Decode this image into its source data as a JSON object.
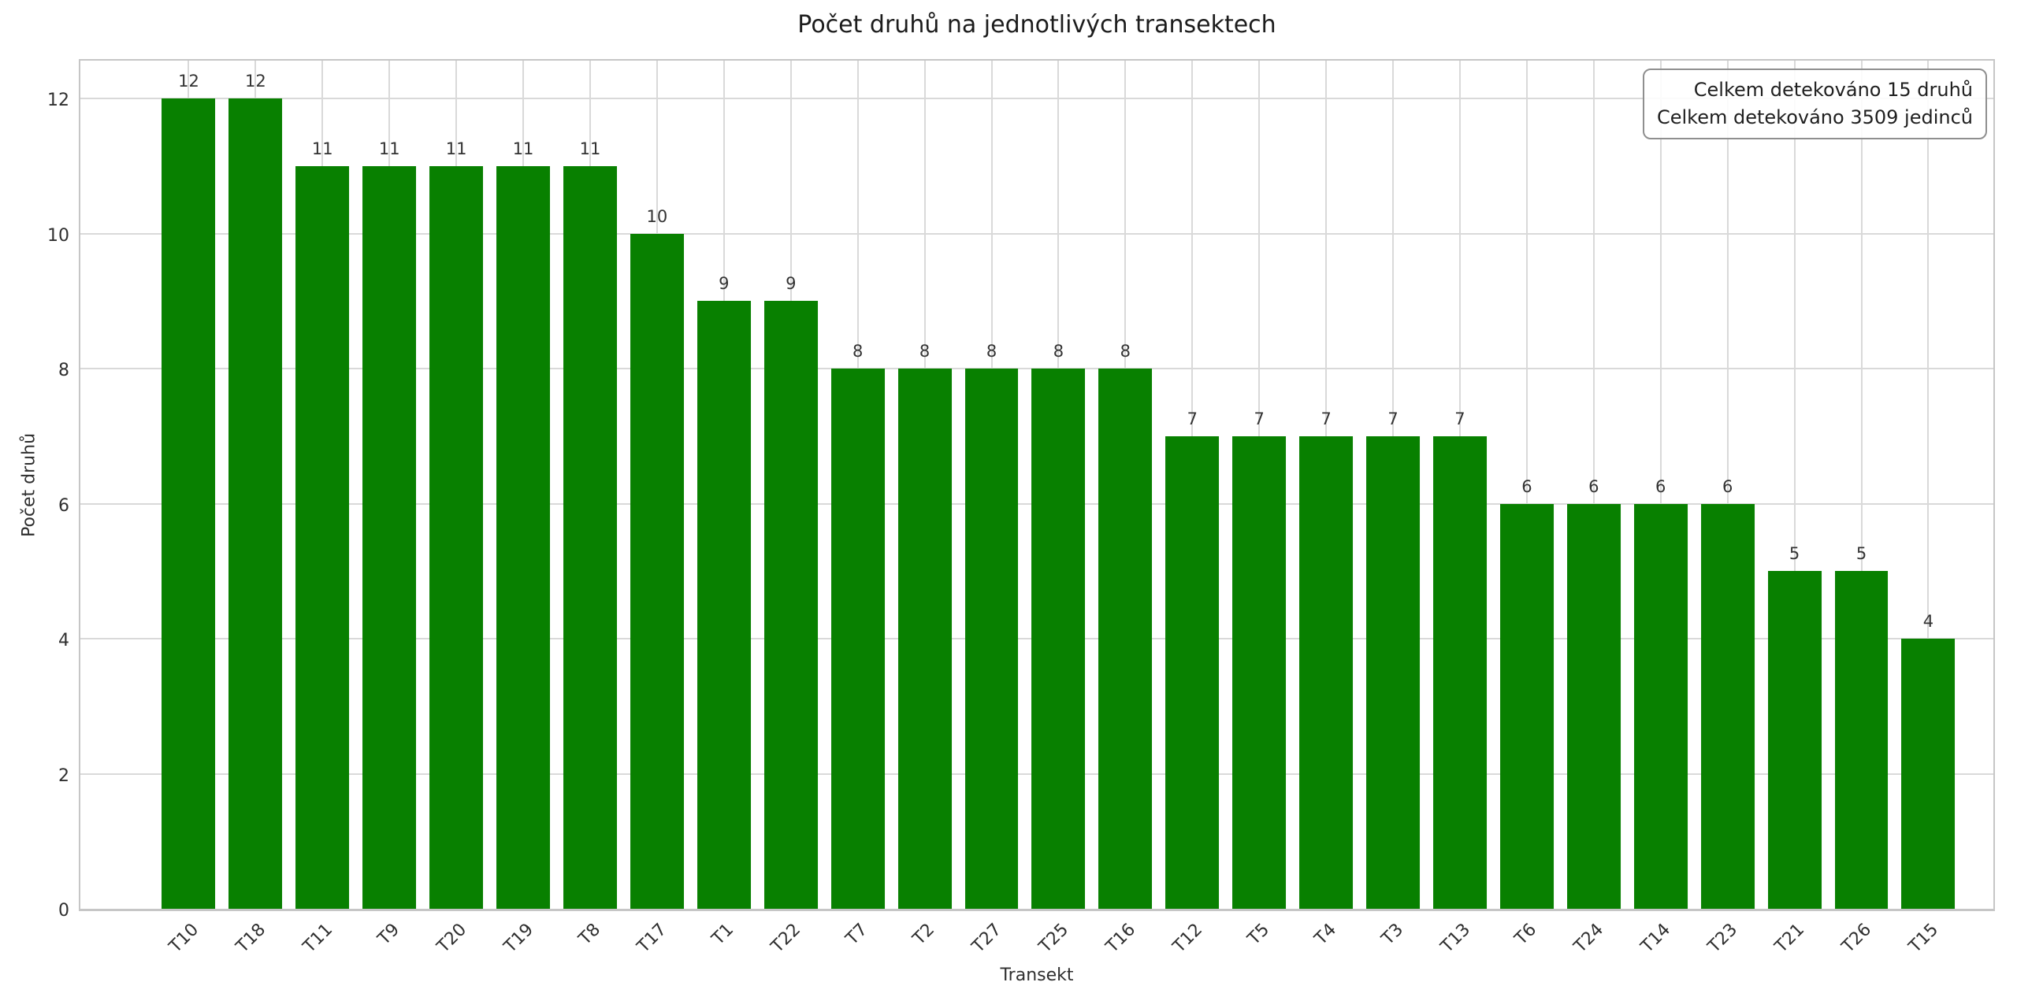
{
  "chart_data": {
    "type": "bar",
    "title": "Počet druhů na jednotlivých transektech",
    "xlabel": "Transekt",
    "ylabel": "Počet druhů",
    "categories": [
      "T10",
      "T18",
      "T11",
      "T9",
      "T20",
      "T19",
      "T8",
      "T17",
      "T1",
      "T22",
      "T7",
      "T2",
      "T27",
      "T25",
      "T16",
      "T12",
      "T5",
      "T4",
      "T3",
      "T13",
      "T6",
      "T24",
      "T14",
      "T23",
      "T21",
      "T26",
      "T15"
    ],
    "values": [
      12,
      12,
      11,
      11,
      11,
      11,
      11,
      10,
      9,
      9,
      8,
      8,
      8,
      8,
      8,
      7,
      7,
      7,
      7,
      7,
      6,
      6,
      6,
      6,
      5,
      5,
      4
    ],
    "yticks": [
      0,
      2,
      4,
      6,
      8,
      10,
      12
    ],
    "ylim": [
      0,
      12.6
    ],
    "grid": true,
    "bar_color": "#088000",
    "grid_color": "#d9d9d9",
    "spine_color": "#c6c6c6",
    "annotation": {
      "line1": "Celkem detekováno 15 druhů",
      "line2": "Celkem detekováno 3509 jedinců"
    }
  }
}
